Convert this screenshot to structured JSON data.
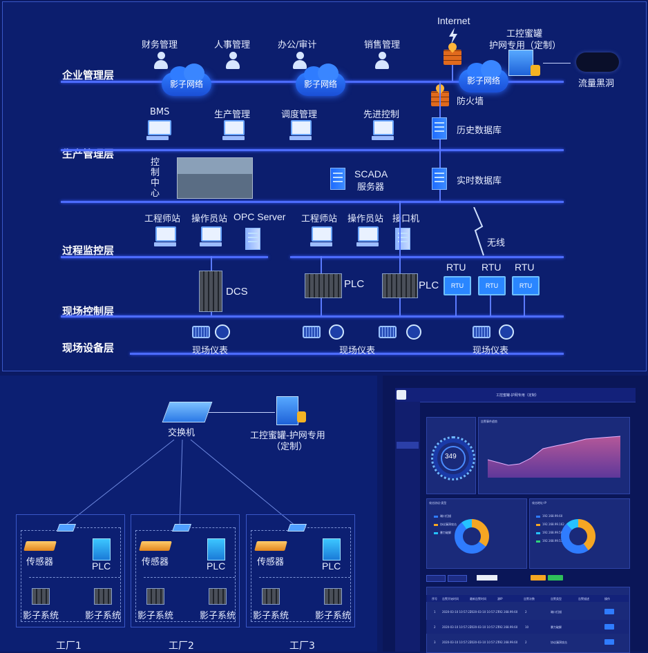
{
  "layers": {
    "enterprise": "企业管理层",
    "production": "生产管理层",
    "process": "过程监控层",
    "field_control": "现场控制层",
    "field_device": "现场设备层"
  },
  "enterprise": {
    "finance": "财务管理",
    "hr": "人事管理",
    "office": "办公/审计",
    "sales": "销售管理",
    "cloud": "影子网络",
    "internet": "Internet",
    "honeypot": "工控蜜罐\n护网专用（定制）",
    "honeypot_l1": "工控蜜罐",
    "honeypot_l2": "护网专用（定制）",
    "blackhole": "流量黑洞",
    "firewall": "防火墙"
  },
  "production": {
    "bms": "BMS",
    "prod_mgmt": "生产管理",
    "dispatch": "调度管理",
    "advanced": "先进控制",
    "history_db": "历史数据库",
    "control_center": "控制中心",
    "scada_l1": "SCADA",
    "scada_l2": "服务器",
    "realtime_db": "实时数据库"
  },
  "process": {
    "eng1": "工程师站",
    "op1": "操作员站",
    "opc": "OPC Server",
    "eng2": "工程师站",
    "op2": "操作员站",
    "interface": "接口机",
    "wireless": "无线"
  },
  "field": {
    "dcs": "DCS",
    "plc1": "PLC",
    "plc2": "PLC",
    "rtu": "RTU",
    "instrument": "现场仪表"
  },
  "bottom_left": {
    "switch": "交换机",
    "honeypot_l1": "工控蜜罐-护网专用",
    "honeypot_l2": "（定制）",
    "sensor": "传感器",
    "plc": "PLC",
    "shadow": "影子系统",
    "factories": [
      "工厂1",
      "工厂2",
      "工厂3"
    ]
  },
  "dashboard": {
    "title": "工控蜜罐-护网专用（定制）",
    "count": "349",
    "chart_card": "告警事件趋势",
    "pie1": "攻击协议·类型",
    "pie2": "攻击地址·IP",
    "pie1_legend": [
      "端口扫描",
      "协议漏洞攻击",
      "暴力破解"
    ],
    "pie2_legend": [
      "192.168.99.60",
      "192.168.99.162",
      "192.168.99.50",
      "192.168.99.51"
    ],
    "table_headers": [
      "序号",
      "告警开始时间",
      "最新告警时间",
      "源IP",
      "告警次数",
      "告警类型",
      "告警描述",
      "操作"
    ],
    "rows": [
      [
        "1",
        "2020-03-10 10:57:27",
        "2020-03-10 10:57:27",
        "192.168.99.60",
        "2",
        "端口扫描"
      ],
      [
        "2",
        "2020-03-10 10:57:27",
        "2020-03-10 10:57:27",
        "192.168.99.60",
        "10",
        "暴力破解"
      ],
      [
        "3",
        "2020-03-10 10:57:27",
        "2020-03-10 10:57:27",
        "192.168.99.60",
        "2",
        "协议漏洞攻击"
      ]
    ],
    "colors": {
      "accent": "#2f7cff",
      "area": "#c0559a",
      "orange": "#f5a623"
    }
  }
}
